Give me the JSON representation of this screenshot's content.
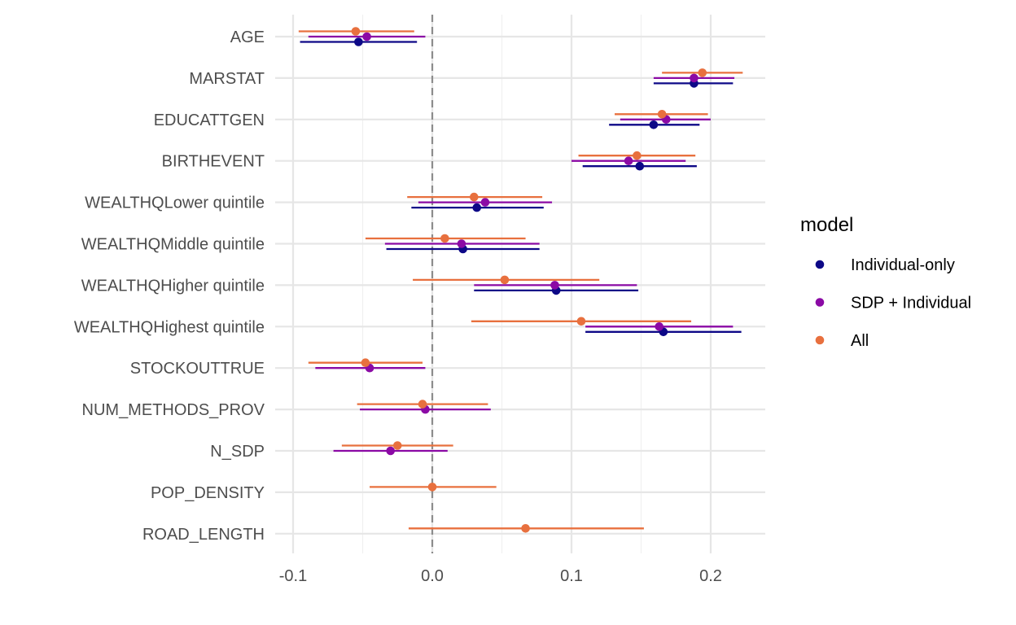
{
  "chart_data": {
    "type": "coefficient_plot",
    "title": "",
    "xlabel": "",
    "ylabel": "",
    "xlim": [
      -0.1,
      0.24
    ],
    "x_ticks": [
      -0.1,
      0.0,
      0.1,
      0.2
    ],
    "x_tick_labels": [
      "-0.1",
      "0.0",
      "0.1",
      "0.2"
    ],
    "grid": true,
    "reference_line": 0,
    "categories": [
      "AGE",
      "MARSTAT",
      "EDUCATTGEN",
      "BIRTHEVENT",
      "WEALTHQLower quintile",
      "WEALTHQMiddle quintile",
      "WEALTHQHigher quintile",
      "WEALTHQHighest quintile",
      "STOCKOUTTRUE",
      "NUM_METHODS_PROV",
      "N_SDP",
      "POP_DENSITY",
      "ROAD_LENGTH"
    ],
    "legend": {
      "title": "model",
      "position": "right"
    },
    "series": [
      {
        "name": "Individual-only",
        "color": "#0D0887",
        "estimates": [
          -0.053,
          0.188,
          0.159,
          0.149,
          0.032,
          0.022,
          0.089,
          0.166,
          null,
          null,
          null,
          null,
          null
        ],
        "lower": [
          -0.095,
          0.159,
          0.127,
          0.108,
          -0.015,
          -0.033,
          0.03,
          0.11,
          null,
          null,
          null,
          null,
          null
        ],
        "upper": [
          -0.011,
          0.216,
          0.192,
          0.19,
          0.08,
          0.077,
          0.148,
          0.222,
          null,
          null,
          null,
          null,
          null
        ]
      },
      {
        "name": "SDP + Individual",
        "color": "#8B0AA5",
        "estimates": [
          -0.047,
          0.188,
          0.168,
          0.141,
          0.038,
          0.021,
          0.088,
          0.163,
          -0.045,
          -0.005,
          -0.03,
          null,
          null
        ],
        "lower": [
          -0.089,
          0.159,
          0.135,
          0.1,
          -0.01,
          -0.034,
          0.03,
          0.11,
          -0.084,
          -0.052,
          -0.071,
          null,
          null
        ],
        "upper": [
          -0.005,
          0.217,
          0.2,
          0.182,
          0.086,
          0.077,
          0.147,
          0.216,
          -0.005,
          0.042,
          0.011,
          null,
          null
        ]
      },
      {
        "name": "All",
        "color": "#E8703E",
        "estimates": [
          -0.055,
          0.194,
          0.165,
          0.147,
          0.03,
          0.009,
          0.052,
          0.107,
          -0.048,
          -0.007,
          -0.025,
          0.0,
          0.067
        ],
        "lower": [
          -0.096,
          0.165,
          0.131,
          0.105,
          -0.018,
          -0.048,
          -0.014,
          0.028,
          -0.089,
          -0.054,
          -0.065,
          -0.045,
          -0.017
        ],
        "upper": [
          -0.013,
          0.223,
          0.198,
          0.189,
          0.079,
          0.067,
          0.12,
          0.186,
          -0.007,
          0.04,
          0.015,
          0.046,
          0.152
        ]
      }
    ]
  }
}
